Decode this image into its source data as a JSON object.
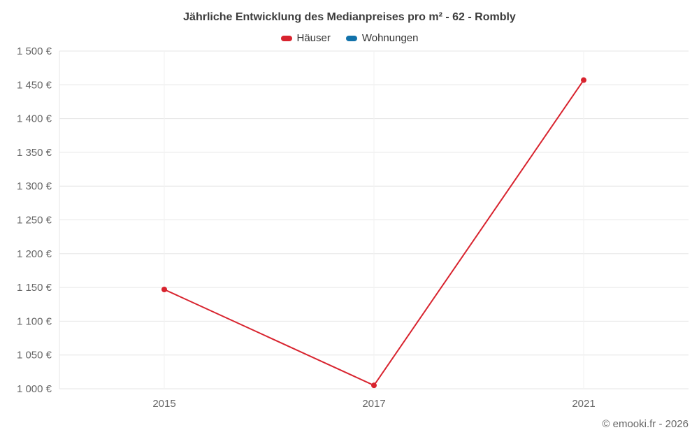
{
  "title": "Jährliche Entwicklung des Medianpreises pro m² - 62 - Rombly",
  "footer": "© emooki.fr - 2026",
  "colors": {
    "hauser": "#d8232e",
    "wohnungen": "#1272aa",
    "grid": "#e6e6e6",
    "axis_line": "#e6e6e6",
    "title_text": "#3c3c3c",
    "tick_text": "#666666"
  },
  "legend": {
    "items": [
      {
        "label": "Häuser",
        "color": "#d8232e"
      },
      {
        "label": "Wohnungen",
        "color": "#1272aa"
      }
    ]
  },
  "chart_data": {
    "type": "line",
    "title": "Jährliche Entwicklung des Medianpreises pro m² - 62 - Rombly",
    "categories": [
      "2015",
      "2017",
      "2021"
    ],
    "series": [
      {
        "name": "Häuser",
        "color": "#d8232e",
        "values": [
          1147,
          1005,
          1457
        ]
      },
      {
        "name": "Wohnungen",
        "color": "#1272aa",
        "values": [
          null,
          null,
          null
        ]
      }
    ],
    "xlabel": "",
    "ylabel": "",
    "ylim": [
      1000,
      1500
    ],
    "ytick_step": 50,
    "ytick_suffix": " €",
    "grid": true,
    "legend_position": "top"
  }
}
